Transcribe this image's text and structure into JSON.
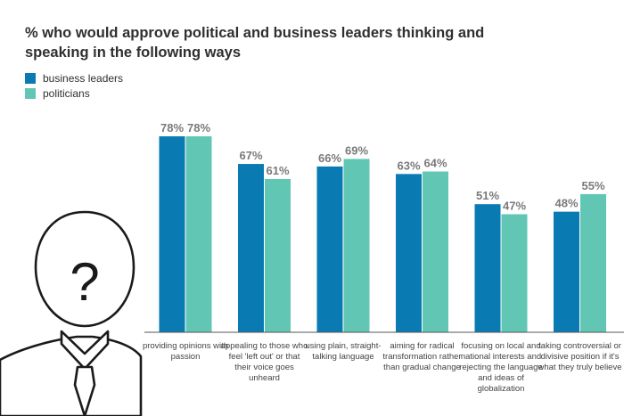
{
  "chart_data": {
    "type": "bar",
    "title": "% who would approve political and business leaders thinking and speaking in the following ways",
    "categories": [
      "providing opinions with passion",
      "appealing to those who feel 'left out' or that their voice goes unheard",
      "using plain, straight-talking language",
      "aiming for radical transformation rather than gradual change",
      "focusing on local and national interests and rejecting the language and ideas of globalization",
      "taking controversial or divisive position if it's what they truly believe"
    ],
    "series": [
      {
        "name": "business leaders",
        "values": [
          78,
          67,
          66,
          63,
          51,
          48
        ],
        "labels": [
          "78%",
          "67%",
          "66%",
          "63%",
          "51%",
          "48%"
        ],
        "color": "#0a7ab3"
      },
      {
        "name": "politicians",
        "values": [
          78,
          61,
          69,
          64,
          47,
          55
        ],
        "labels": [
          "78%",
          "61%",
          "69%",
          "64%",
          "47%",
          "55%"
        ],
        "color": "#62c6b4"
      }
    ],
    "ylim": [
      0,
      100
    ],
    "unit": "%",
    "xlabel": "",
    "ylabel": "",
    "grid": false,
    "legend": "top-left"
  },
  "decoration": {
    "figure": "anonymous businessman silhouette",
    "icon_glyph": "?"
  }
}
